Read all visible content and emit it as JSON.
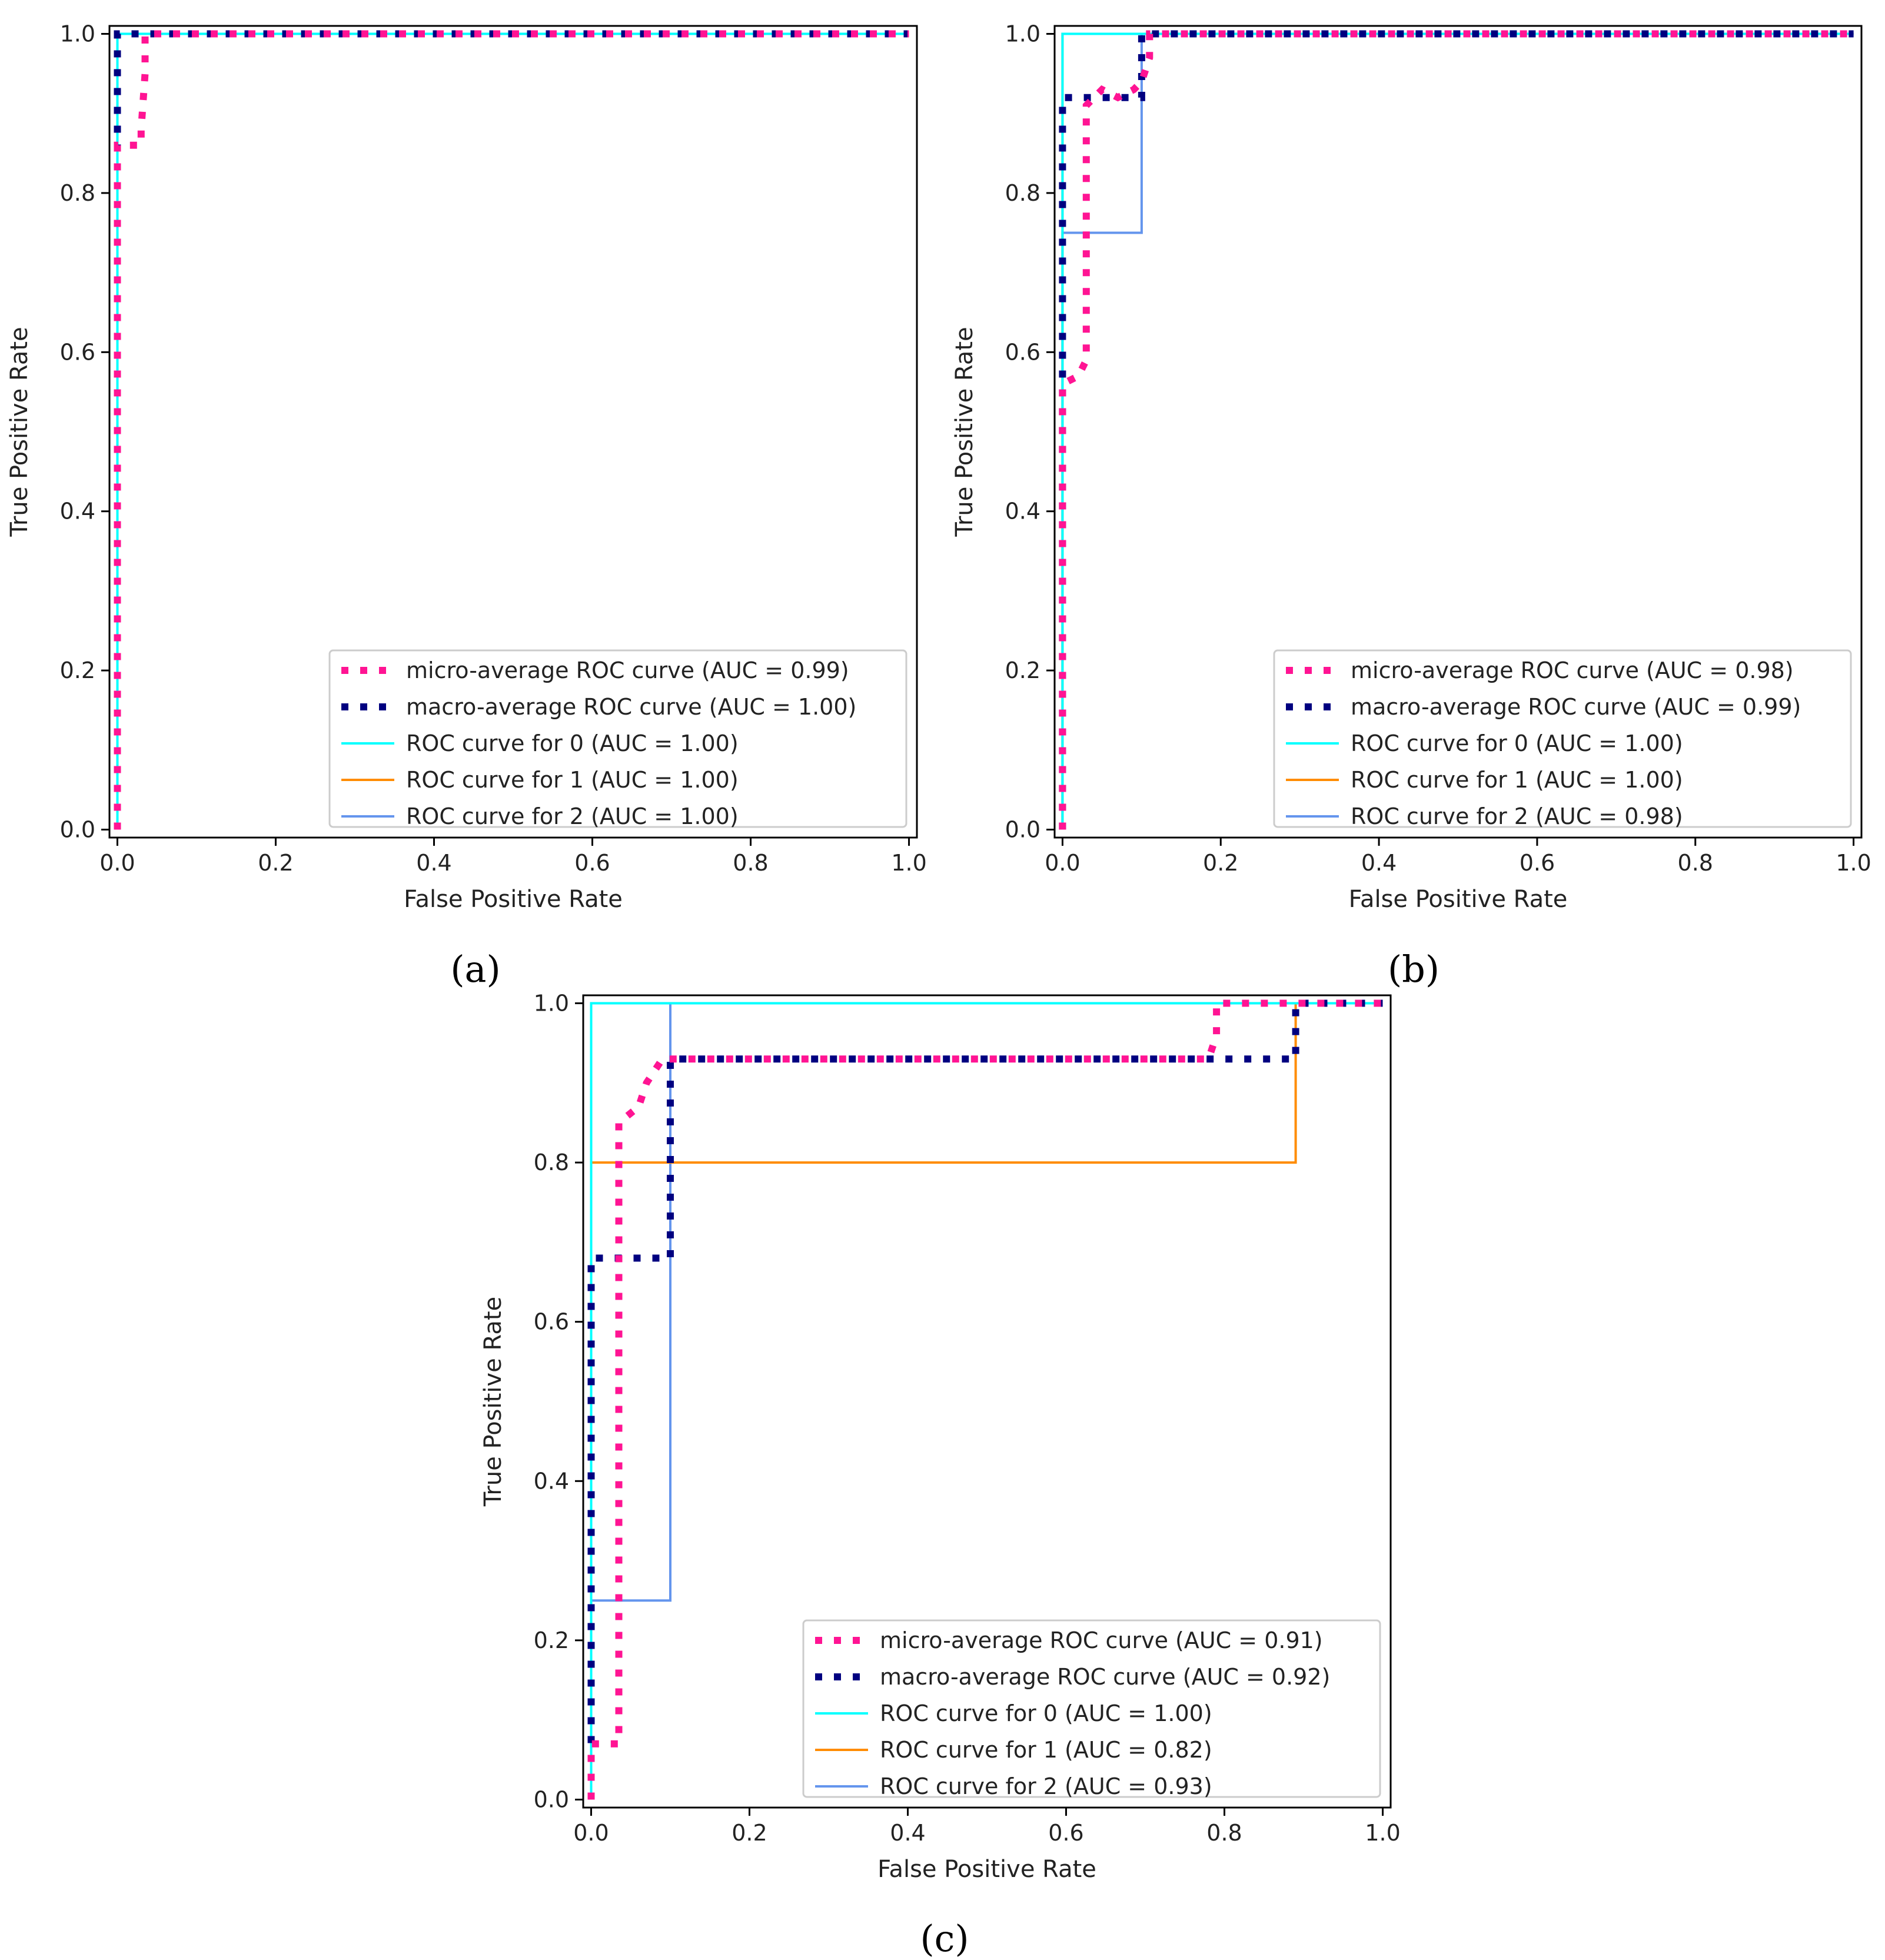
{
  "colors": {
    "micro": "#ff1493",
    "macro": "#000080",
    "class0": "#00ffff",
    "class1": "#ff8c00",
    "class2": "#6495ed",
    "axis": "#000000",
    "legend_border": "#cccccc"
  },
  "chart_data": [
    {
      "type": "line",
      "panel_label": "(a)",
      "xlabel": "False Positive Rate",
      "ylabel": "True Positive Rate",
      "xlim": [
        -0.01,
        1.01
      ],
      "ylim": [
        -0.01,
        1.01
      ],
      "xticks": [
        0.0,
        0.2,
        0.4,
        0.6,
        0.8,
        1.0
      ],
      "yticks": [
        0.0,
        0.2,
        0.4,
        0.6,
        0.8,
        1.0
      ],
      "tick_labels": [
        "0.0",
        "0.2",
        "0.4",
        "0.6",
        "0.8",
        "1.0"
      ],
      "legend_position": "lower-right",
      "series": [
        {
          "name": "micro-average ROC curve (AUC = 0.99)",
          "style": "dotted",
          "color_key": "micro",
          "x": [
            0,
            0,
            0.0,
            0.03,
            0.03,
            0.035,
            0.035,
            1.0
          ],
          "y": [
            0,
            0.85,
            0.86,
            0.86,
            0.88,
            0.95,
            1.0,
            1.0
          ]
        },
        {
          "name": "macro-average ROC curve (AUC = 1.00)",
          "style": "dotted",
          "color_key": "macro",
          "x": [
            0,
            0,
            1.0
          ],
          "y": [
            0,
            1.0,
            1.0
          ]
        },
        {
          "name": "ROC curve for 0 (AUC = 1.00)",
          "style": "solid",
          "color_key": "class0",
          "x": [
            0,
            0,
            1.0
          ],
          "y": [
            0,
            1.0,
            1.0
          ]
        },
        {
          "name": "ROC curve for 1 (AUC = 1.00)",
          "style": "solid",
          "color_key": "class1",
          "x": [
            0,
            0,
            1.0
          ],
          "y": [
            0,
            1.0,
            1.0
          ]
        },
        {
          "name": "ROC curve for 2 (AUC = 1.00)",
          "style": "solid",
          "color_key": "class2",
          "x": [
            0,
            0,
            1.0
          ],
          "y": [
            0,
            1.0,
            1.0
          ]
        }
      ]
    },
    {
      "type": "line",
      "panel_label": "(b)",
      "xlabel": "False Positive Rate",
      "ylabel": "True Positive Rate",
      "xlim": [
        -0.01,
        1.01
      ],
      "ylim": [
        -0.01,
        1.01
      ],
      "xticks": [
        0.0,
        0.2,
        0.4,
        0.6,
        0.8,
        1.0
      ],
      "yticks": [
        0.0,
        0.2,
        0.4,
        0.6,
        0.8,
        1.0
      ],
      "tick_labels": [
        "0.0",
        "0.2",
        "0.4",
        "0.6",
        "0.8",
        "1.0"
      ],
      "legend_position": "lower-right",
      "series": [
        {
          "name": "micro-average ROC curve (AUC = 0.98)",
          "style": "dotted",
          "color_key": "micro",
          "x": [
            0,
            0,
            0.02,
            0.03,
            0.03,
            0.05,
            0.07,
            0.09,
            0.1,
            0.11,
            0.11,
            1.0
          ],
          "y": [
            0,
            0.56,
            0.57,
            0.59,
            0.91,
            0.93,
            0.92,
            0.93,
            0.94,
            0.97,
            1.0,
            1.0
          ]
        },
        {
          "name": "macro-average ROC curve (AUC = 0.99)",
          "style": "dotted",
          "color_key": "macro",
          "x": [
            0,
            0,
            0.1,
            0.1,
            1.0
          ],
          "y": [
            0,
            0.92,
            0.92,
            1.0,
            1.0
          ]
        },
        {
          "name": "ROC curve for 0 (AUC = 1.00)",
          "style": "solid",
          "color_key": "class0",
          "x": [
            0,
            0,
            1.0
          ],
          "y": [
            0,
            1.0,
            1.0
          ]
        },
        {
          "name": "ROC curve for 1 (AUC = 1.00)",
          "style": "solid",
          "color_key": "class1",
          "x": [
            0,
            0,
            1.0
          ],
          "y": [
            0,
            1.0,
            1.0
          ]
        },
        {
          "name": "ROC curve for 2 (AUC = 0.98)",
          "style": "solid",
          "color_key": "class2",
          "x": [
            0,
            0,
            0.1,
            0.1,
            1.0
          ],
          "y": [
            0,
            0.75,
            0.75,
            1.0,
            1.0
          ]
        }
      ]
    },
    {
      "type": "line",
      "panel_label": "(c)",
      "xlabel": "False Positive Rate",
      "ylabel": "True Positive Rate",
      "xlim": [
        -0.01,
        1.01
      ],
      "ylim": [
        -0.01,
        1.01
      ],
      "xticks": [
        0.0,
        0.2,
        0.4,
        0.6,
        0.8,
        1.0
      ],
      "yticks": [
        0.0,
        0.2,
        0.4,
        0.6,
        0.8,
        1.0
      ],
      "tick_labels": [
        "0.0",
        "0.2",
        "0.4",
        "0.6",
        "0.8",
        "1.0"
      ],
      "legend_position": "lower-right",
      "series": [
        {
          "name": "micro-average ROC curve (AUC = 0.91)",
          "style": "dotted",
          "color_key": "micro",
          "x": [
            0,
            0,
            0.035,
            0.035,
            0.06,
            0.07,
            0.09,
            0.1,
            0.78,
            0.79,
            0.79,
            1.0
          ],
          "y": [
            0,
            0.07,
            0.07,
            0.85,
            0.87,
            0.9,
            0.93,
            0.93,
            0.93,
            0.96,
            1.0,
            1.0
          ]
        },
        {
          "name": "macro-average ROC curve (AUC = 0.92)",
          "style": "dotted",
          "color_key": "macro",
          "x": [
            0,
            0,
            0.1,
            0.1,
            0.89,
            0.89,
            1.0
          ],
          "y": [
            0,
            0.68,
            0.68,
            0.93,
            0.93,
            1.0,
            1.0
          ]
        },
        {
          "name": "ROC curve for 0 (AUC = 1.00)",
          "style": "solid",
          "color_key": "class0",
          "x": [
            0,
            0,
            1.0
          ],
          "y": [
            0,
            1.0,
            1.0
          ]
        },
        {
          "name": "ROC curve for 1 (AUC = 0.82)",
          "style": "solid",
          "color_key": "class1",
          "x": [
            0,
            0,
            0.89,
            0.89,
            1.0
          ],
          "y": [
            0,
            0.8,
            0.8,
            1.0,
            1.0
          ]
        },
        {
          "name": "ROC curve for 2 (AUC = 0.93)",
          "style": "solid",
          "color_key": "class2",
          "x": [
            0,
            0,
            0.1,
            0.1,
            1.0
          ],
          "y": [
            0,
            0.25,
            0.25,
            1.0,
            1.0
          ]
        }
      ]
    }
  ]
}
